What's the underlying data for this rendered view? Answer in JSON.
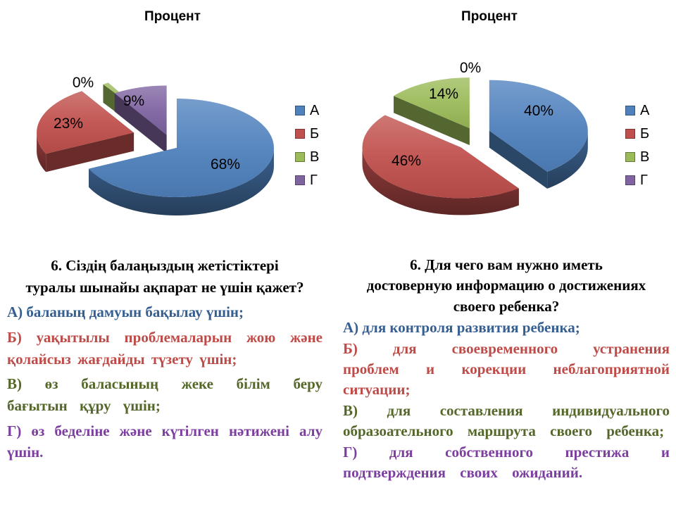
{
  "page": {
    "background": "#ffffff"
  },
  "chart_data": [
    {
      "type": "pie",
      "title": "Процент",
      "labels": [
        "А",
        "Б",
        "В",
        "Г"
      ],
      "values": [
        68,
        23,
        0,
        9
      ],
      "data_labels": [
        "68%",
        "23%",
        "0%",
        "9%"
      ],
      "colors": [
        "#4f81bd",
        "#c0504d",
        "#9bbb59",
        "#8064a2"
      ],
      "unit": "%",
      "legend_position": "right",
      "style": "3d exploded pie, black percent data labels, zero slice labeled outside"
    },
    {
      "type": "pie",
      "title": "Процент",
      "labels": [
        "А",
        "Б",
        "В",
        "Г"
      ],
      "values": [
        40,
        46,
        14,
        0
      ],
      "data_labels": [
        "40%",
        "46%",
        "14%",
        "0%"
      ],
      "colors": [
        "#4f81bd",
        "#c0504d",
        "#9bbb59",
        "#8064a2"
      ],
      "unit": "%",
      "legend_position": "right",
      "style": "3d exploded pie, black percent data labels, zero slice labeled outside"
    }
  ],
  "questions": [
    {
      "heading": "6. Сіздің балаңыздың жетістіктері\nтуралы шынайы ақпарат не үшін қажет?",
      "options": [
        {
          "key": "А",
          "text": "А) баланың дамуын бақылау үшін;",
          "color": "#365f91"
        },
        {
          "key": "Б",
          "text": "Б) уақытылы проблемаларын жою және қолайсыз жағдайды түзету үшін;",
          "color": "#be4b48"
        },
        {
          "key": "В",
          "text": "В) өз баласының жеке білім беру бағытын құру үшін;",
          "color": "#55682a"
        },
        {
          "key": "Г",
          "text": "Г) өз беделіне және күтілген нәтижені алу үшін.",
          "color": "#7c3fa0"
        }
      ]
    },
    {
      "heading": "6. Для чего вам нужно иметь\nдостоверную информацию о достижениях\nсвоего ребенка?",
      "options": [
        {
          "key": "А",
          "text": "А) для контроля развития ребенка;",
          "color": "#365f91"
        },
        {
          "key": "Б",
          "text": "Б) для своевременного устранения проблем и корекции неблагоприятной ситуации;",
          "color": "#be4b48"
        },
        {
          "key": "В",
          "text": "В) для составления индивидуального образоательного маршрута своего ребенка;",
          "color": "#55682a"
        },
        {
          "key": "Г",
          "text": "Г) для собственного престижа и подтверждения своих ожиданий.",
          "color": "#7c3fa0"
        }
      ]
    }
  ]
}
